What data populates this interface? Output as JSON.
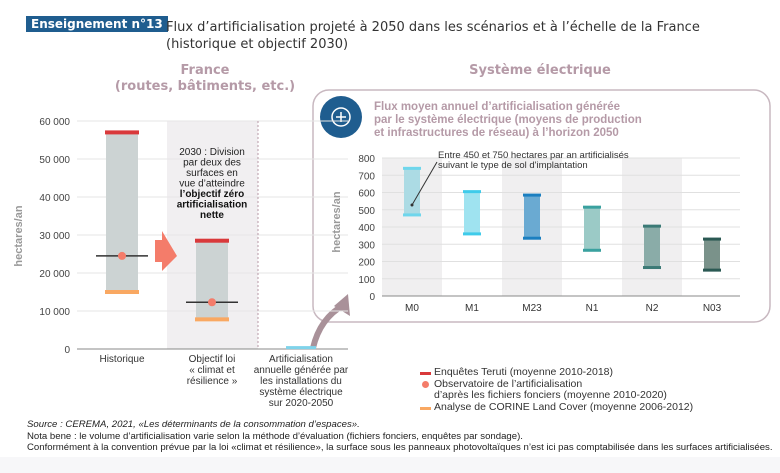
{
  "header": {
    "badge": "Enseignement n°13",
    "title_line1": "Flux d’artificialisation projeté à 2050 dans les scénarios et à l’échelle de la France",
    "title_line2": "(historique et objectif 2030)"
  },
  "sections": {
    "france_line1": "France",
    "france_line2": "(routes, bâtiments, etc.)",
    "electric": "Système électrique"
  },
  "panel": {
    "icon": "plus-circle-icon",
    "title_lines": [
      "Flux moyen annuel d’artificialisation générée",
      "par le système électrique (moyens de production",
      "et infrastructures de réseau) à l’horizon 2050"
    ]
  },
  "colors": {
    "teruti": "#d9393b",
    "observatoire": "#f47c6a",
    "corine": "#f9a862",
    "bar": "#ccd3d3",
    "accent": "#1f5d8f"
  },
  "chart_data": [
    {
      "type": "range-bar",
      "ylabel": "hectares/an",
      "ylim": [
        0,
        60000
      ],
      "yticks": [
        "0",
        "10 000",
        "20 000",
        "30 000",
        "40 000",
        "50 000",
        "60 000"
      ],
      "ytick_values": [
        0,
        10000,
        20000,
        30000,
        40000,
        50000,
        60000
      ],
      "categories": [
        [
          "Historique"
        ],
        [
          "Objectif loi",
          "« climat et",
          "résilience »"
        ],
        [
          "Artificialisation",
          "annuelle générée par",
          "les installations du",
          "système électrique",
          "sur 2020-2050"
        ]
      ],
      "series": [
        {
          "name": "Enquêtes Teruti (moyenne 2010-2018)",
          "values": [
            57000,
            28500,
            null
          ]
        },
        {
          "name": "Observatoire de l’artificialisation d’après les fichiers fonciers (moyenne 2010-2020)",
          "values": [
            24500,
            12300,
            null
          ]
        },
        {
          "name": "Analyse de CORINE Land Cover (moyenne 2006-2012)",
          "values": [
            15000,
            7800,
            null
          ]
        },
        {
          "name": "Système électrique",
          "values": [
            null,
            null,
            500
          ]
        }
      ],
      "annotation": {
        "lines": [
          "2030 : Division",
          "par deux des",
          "surfaces en",
          "vue d’atteindre"
        ],
        "bold_lines": [
          "l’objectif zéro",
          "artificialisation",
          "nette"
        ]
      }
    },
    {
      "type": "range-bar",
      "ylabel": "hectares/an",
      "ylim": [
        0,
        800
      ],
      "yticks": [
        "0",
        "100",
        "200",
        "300",
        "400",
        "500",
        "600",
        "700",
        "800"
      ],
      "ytick_values": [
        0,
        100,
        200,
        300,
        400,
        500,
        600,
        700,
        800
      ],
      "categories": [
        "M0",
        "M1",
        "M23",
        "N1",
        "N2",
        "N03"
      ],
      "low": [
        470,
        360,
        335,
        265,
        165,
        150
      ],
      "high": [
        740,
        605,
        585,
        515,
        405,
        330
      ],
      "bar_colors": [
        "#acdbe4",
        "#9fe3f0",
        "#6aaad2",
        "#9bcac6",
        "#8aaca8",
        "#7a928a"
      ],
      "cap_colors": [
        "#6fd6ec",
        "#3fcbea",
        "#1b7fc0",
        "#3aa19f",
        "#3b7a76",
        "#2b5953"
      ],
      "annotation": [
        "Entre 450 et 750 hectares par an artificialisés",
        "suivant le type de sol d'implantation"
      ]
    }
  ],
  "legend": [
    {
      "label": "Enquêtes Teruti (moyenne 2010-2018)"
    },
    {
      "label": "Observatoire de l’artificialisation"
    },
    {
      "label": "d’après les fichiers fonciers (moyenne 2010-2020)"
    },
    {
      "label": "Analyse de CORINE Land Cover (moyenne 2006-2012)"
    }
  ],
  "footer": {
    "source": "Source : CEREMA, 2021, «Les déterminants de la consommation d’espaces».",
    "note1": "Nota bene : le volume d’artificialisation varie selon la méthode d’évaluation (fichiers fonciers, enquêtes par sondage).",
    "note2": "Conformément à la convention prévue par la loi «climat et résilience», la surface sous les panneaux photovoltaïques n’est ici pas comptabilisée dans les surfaces artificialisées."
  }
}
